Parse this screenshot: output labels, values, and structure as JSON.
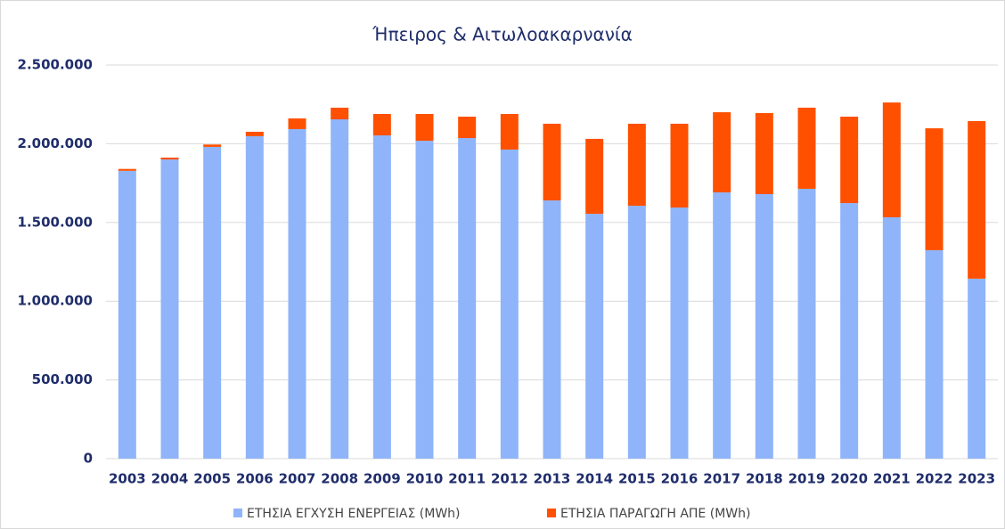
{
  "chart_data": {
    "type": "stacked_bar",
    "title": "Ήπειρος & Αιτωλοακαρνανία",
    "categories": [
      "2003",
      "2004",
      "2005",
      "2006",
      "2007",
      "2008",
      "2009",
      "2010",
      "2011",
      "2012",
      "2013",
      "2014",
      "2015",
      "2016",
      "2017",
      "2018",
      "2019",
      "2020",
      "2021",
      "2022",
      "2023"
    ],
    "series": [
      {
        "name": "ΕΤΗΣΙΑ ΕΓΧΥΣΗ ΕΝΕΡΓΕΙΑΣ (MWh)",
        "color": "#8fb4fa",
        "values": [
          1828000,
          1900000,
          1980000,
          2048000,
          2093000,
          2155000,
          2053000,
          2019000,
          2036000,
          1963000,
          1640000,
          1555000,
          1606000,
          1595000,
          1691000,
          1680000,
          1714000,
          1623000,
          1533000,
          1324000,
          1143000
        ]
      },
      {
        "name": "ΕΤΗΣΙΑ ΠΑΡΑΓΩΓΗ ΑΠΕ (MWh)",
        "color": "#ff5000",
        "values": [
          12000,
          12000,
          15000,
          28000,
          68000,
          74000,
          136000,
          170000,
          136000,
          226000,
          487000,
          476000,
          521000,
          532000,
          509000,
          515000,
          515000,
          549000,
          729000,
          774000,
          1001000
        ]
      }
    ],
    "ylim": [
      0,
      2500000
    ],
    "yticks": [
      0,
      {
        "value": 500000,
        "label": "500.000"
      },
      {
        "value": 1000000,
        "label": "1.000.000"
      },
      {
        "value": 1500000,
        "label": "1.500.000"
      },
      {
        "value": 2000000,
        "label": "2.000.000"
      },
      {
        "value": 2500000,
        "label": "2.500.000"
      }
    ],
    "grid": true
  }
}
